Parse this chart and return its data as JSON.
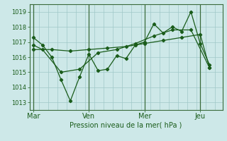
{
  "background_color": "#cde8e8",
  "plot_bg_color": "#cde8e8",
  "grid_color": "#a0c8c8",
  "line_color": "#1a5c1a",
  "marker_color": "#1a5c1a",
  "title": "Pression niveau de la mer( hPa )",
  "xlabel_ticks": [
    "Mar",
    "Ven",
    "Mer",
    "Jeu"
  ],
  "xlabel_tick_positions": [
    0,
    3,
    6,
    9
  ],
  "ylim": [
    1012.5,
    1019.5
  ],
  "xlim": [
    -0.2,
    10.2
  ],
  "yticks": [
    1013,
    1014,
    1015,
    1016,
    1017,
    1018,
    1019
  ],
  "series1_x": [
    0,
    0.5,
    1.0,
    1.5,
    2.0,
    2.5,
    3.0,
    3.5,
    4.0,
    4.5,
    5.0,
    5.5,
    6.0,
    6.5,
    7.0,
    7.5,
    8.0,
    8.5,
    9.0,
    9.5
  ],
  "series1_y": [
    1017.3,
    1016.8,
    1016.0,
    1014.5,
    1013.1,
    1014.7,
    1016.2,
    1015.1,
    1015.2,
    1016.1,
    1015.9,
    1016.8,
    1017.0,
    1018.2,
    1017.6,
    1018.0,
    1017.7,
    1019.0,
    1016.9,
    1015.5
  ],
  "series2_x": [
    0,
    0.5,
    1.5,
    2.5,
    3.5,
    4.5,
    5.5,
    6.5,
    7.5,
    8.5,
    9.5
  ],
  "series2_y": [
    1016.8,
    1016.5,
    1015.0,
    1015.2,
    1016.3,
    1016.5,
    1016.9,
    1017.4,
    1017.8,
    1017.8,
    1015.3
  ],
  "series3_x": [
    0,
    1.0,
    2.0,
    3.0,
    4.0,
    5.0,
    6.0,
    7.0,
    8.0,
    9.0,
    9.5
  ],
  "series3_y": [
    1016.5,
    1016.5,
    1016.4,
    1016.5,
    1016.6,
    1016.7,
    1016.9,
    1017.1,
    1017.3,
    1017.5,
    1015.3
  ],
  "vline_positions": [
    0,
    3,
    6,
    9
  ],
  "vline_color": "#3a6a3a",
  "minor_grid_x_step": 0.5,
  "title_fontsize": 7,
  "tick_fontsize": 6
}
